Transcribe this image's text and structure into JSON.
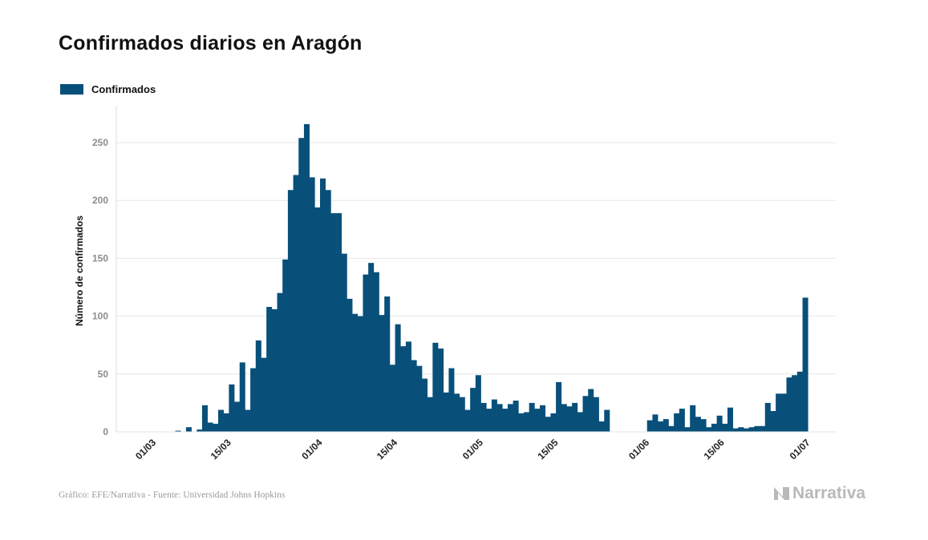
{
  "title": "Confirmados diarios en Aragón",
  "footer": "Gráfico: EFE/Narrativa - Fuente: Universidad Johns Hopkins",
  "brand": "Narrativa",
  "colors": {
    "bar": "#08507a",
    "grid": "#e6e6e6",
    "tick": "#8c8c8c"
  },
  "chart_data": {
    "type": "bar",
    "title": "Confirmados diarios en Aragón",
    "xlabel": "",
    "ylabel": "Número de confirmados",
    "ylim": [
      0,
      280
    ],
    "yticks": [
      0,
      50,
      100,
      150,
      200,
      250
    ],
    "xlim": [
      "2020-02-23",
      "2020-07-01"
    ],
    "xticks": [
      {
        "date": "2020-03-01",
        "label": "01/03"
      },
      {
        "date": "2020-03-15",
        "label": "15/03"
      },
      {
        "date": "2020-04-01",
        "label": "01/04"
      },
      {
        "date": "2020-04-15",
        "label": "15/04"
      },
      {
        "date": "2020-05-01",
        "label": "01/05"
      },
      {
        "date": "2020-05-15",
        "label": "15/05"
      },
      {
        "date": "2020-06-01",
        "label": "01/06"
      },
      {
        "date": "2020-06-15",
        "label": "15/06"
      },
      {
        "date": "2020-07-01",
        "label": "01/07"
      }
    ],
    "grid": true,
    "legend": "top-left",
    "series": [
      {
        "name": "Confirmados",
        "start_date": "2020-02-23",
        "values": [
          0,
          0,
          0,
          0,
          0,
          0,
          0,
          0,
          0,
          0,
          0,
          1,
          0,
          4,
          0,
          2,
          23,
          8,
          7,
          19,
          16,
          41,
          26,
          60,
          19,
          55,
          79,
          64,
          108,
          106,
          120,
          149,
          209,
          222,
          254,
          266,
          220,
          194,
          219,
          209,
          189,
          189,
          154,
          115,
          102,
          100,
          136,
          146,
          138,
          101,
          117,
          58,
          93,
          74,
          78,
          62,
          57,
          46,
          30,
          77,
          72,
          34,
          55,
          33,
          30,
          19,
          38,
          49,
          25,
          20,
          28,
          24,
          20,
          24,
          27,
          16,
          17,
          25,
          20,
          23,
          13,
          16,
          43,
          24,
          22,
          25,
          17,
          31,
          37,
          30,
          9,
          19,
          0,
          0,
          0,
          0,
          0,
          0,
          0,
          10,
          15,
          9,
          11,
          5,
          16,
          20,
          4,
          23,
          13,
          11,
          4,
          7,
          14,
          7,
          21,
          3,
          4,
          3,
          4,
          5,
          5,
          25,
          18,
          33,
          33,
          47,
          49,
          52,
          116
        ]
      }
    ]
  }
}
